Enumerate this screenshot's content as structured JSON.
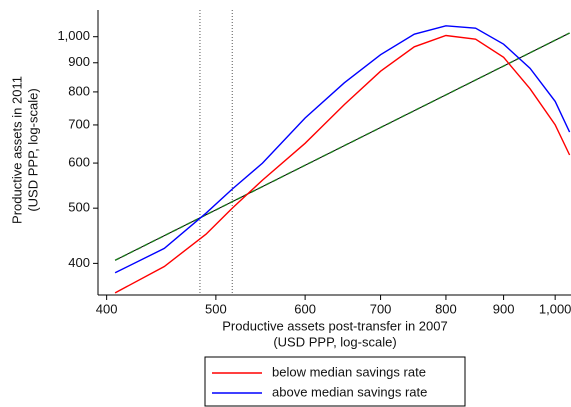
{
  "chart_data": {
    "type": "line",
    "x_label": [
      "Productive assets post-transfer in 2007",
      "(USD PPP, log-scale)"
    ],
    "y_label": [
      "Productive assets in 2011",
      "(USD PPP, log-scale)"
    ],
    "log_x": true,
    "log_y": true,
    "xlim": [
      393,
      1035
    ],
    "ylim": [
      352,
      1114
    ],
    "xticks": [
      400,
      500,
      600,
      700,
      800,
      900,
      {
        "value": 1000,
        "label": "1,000"
      }
    ],
    "yticks": [
      400,
      500,
      600,
      700,
      800,
      900,
      {
        "value": 1000,
        "label": "1,000"
      }
    ],
    "vlines": [
      484,
      517
    ],
    "x": [
      407,
      450,
      490,
      517,
      550,
      600,
      650,
      700,
      750,
      800,
      850,
      900,
      950,
      1000,
      1030
    ],
    "series": [
      {
        "name": "below median savings rate",
        "color": "#ff0000",
        "values": [
          355,
          395,
          450,
          500,
          560,
          650,
          760,
          870,
          960,
          1005,
          990,
          920,
          810,
          700,
          620
        ]
      },
      {
        "name": "above median savings rate",
        "color": "#0000ff",
        "values": [
          385,
          425,
          490,
          540,
          600,
          720,
          830,
          930,
          1010,
          1045,
          1035,
          970,
          880,
          770,
          680
        ]
      }
    ],
    "reference_line": {
      "color": "#1a7a1a",
      "x": [
        407,
        1030
      ],
      "values": [
        405,
        1015
      ]
    }
  }
}
